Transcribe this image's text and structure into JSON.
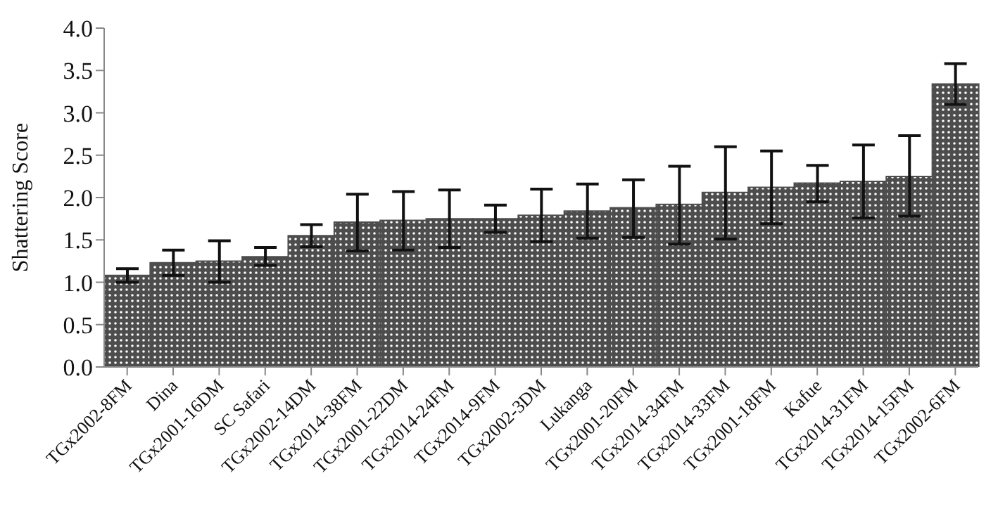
{
  "chart_data": {
    "type": "bar",
    "ylabel": "Shattering Score",
    "categories": [
      "TGx2002-8FM",
      "Dina",
      "TGx2001-16DM",
      "SC Safari",
      "TGx2002-14DM",
      "TGx2014-38FM",
      "TGx2001-22DM",
      "TGx2014-24FM",
      "TGx2014-9FM",
      "TGx2002-3DM",
      "Lukanga",
      "TGx2001-20FM",
      "TGx2014-34FM",
      "TGx2014-33FM",
      "TGx2001-18FM",
      "Kafue",
      "TGx2014-31FM",
      "TGx2014-15FM",
      "TGx2002-6FM"
    ],
    "values": [
      1.08,
      1.23,
      1.25,
      1.3,
      1.55,
      1.71,
      1.73,
      1.75,
      1.75,
      1.79,
      1.84,
      1.88,
      1.92,
      2.06,
      2.12,
      2.17,
      2.19,
      2.25,
      3.34
    ],
    "errors": [
      [
        1.0,
        1.16
      ],
      [
        1.08,
        1.38
      ],
      [
        1.0,
        1.49
      ],
      [
        1.2,
        1.41
      ],
      [
        1.42,
        1.68
      ],
      [
        1.37,
        2.04
      ],
      [
        1.38,
        2.07
      ],
      [
        1.41,
        2.09
      ],
      [
        1.59,
        1.91
      ],
      [
        1.48,
        2.1
      ],
      [
        1.52,
        2.16
      ],
      [
        1.53,
        2.21
      ],
      [
        1.45,
        2.37
      ],
      [
        1.51,
        2.6
      ],
      [
        1.69,
        2.55
      ],
      [
        1.95,
        2.38
      ],
      [
        1.76,
        2.62
      ],
      [
        1.78,
        2.73
      ],
      [
        3.1,
        3.58
      ]
    ],
    "color": "#4d4d4d",
    "ylim": [
      0,
      4
    ],
    "yticks": [
      {
        "value": 0,
        "label": "0.0"
      },
      {
        "value": 0.5,
        "label": "0.5"
      },
      {
        "value": 1,
        "label": "1.0"
      },
      {
        "value": 1.5,
        "label": "1.5"
      },
      {
        "value": 2,
        "label": "2.0"
      },
      {
        "value": 2.5,
        "label": "2.5"
      },
      {
        "value": 3,
        "label": "3.0"
      },
      {
        "value": 3.5,
        "label": "3.5"
      },
      {
        "value": 4,
        "label": "4.0"
      }
    ],
    "grid": false,
    "legend": false
  }
}
